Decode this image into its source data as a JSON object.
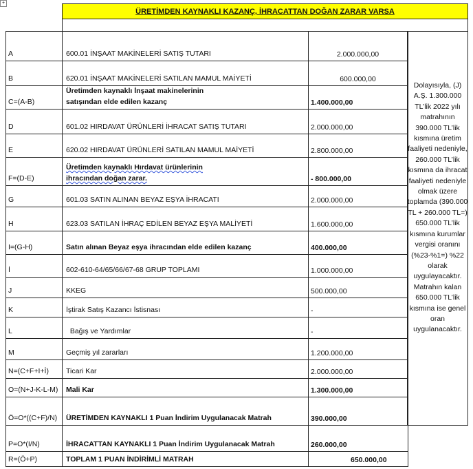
{
  "header": {
    "title": "ÜRETİMDEN KAYNAKLI KAZANÇ, İHRACATTAN DOĞAN ZARAR VARSA"
  },
  "rows": [
    {
      "code": "A",
      "desc": [
        "600.01 İNŞAAT MAKİNELERİ SATIŞ TUTARI"
      ],
      "value": "2.000.000,00",
      "bold": false
    },
    {
      "code": "B",
      "desc": [
        "620.01 İNŞAAT MAKİNELERİ SATILAN MAMUL MAİYETİ"
      ],
      "value": "600.000,00",
      "bold": false
    },
    {
      "code": "C=(A-B)",
      "desc": [
        "Üretimden kaynaklı İnşaat makinelerinin",
        "satışından elde edilen kazanç"
      ],
      "value": "1.400.000,00",
      "bold": true
    },
    {
      "code": "D",
      "desc": [
        "601.02 HIRDAVAT ÜRÜNLERİ İHRACAT SATIŞ TUTARI"
      ],
      "value": "2.000.000,00",
      "bold": false
    },
    {
      "code": "E",
      "desc": [
        "620.02 HIRDAVAT ÜRÜNLERİ SATILAN MAMUL MAİYETİ"
      ],
      "value": "2.800.000,00",
      "bold": false
    },
    {
      "code": "F=(D-E)",
      "desc": [
        "Üretimden kaynaklı Hırdavat ürünlerinin",
        "ihracından doğan zarar."
      ],
      "value": "- 800.000,00",
      "bold": true
    },
    {
      "code": "G",
      "desc": [
        "601.03 SATIN ALINAN BEYAZ EŞYA İHRACATI"
      ],
      "value": "2.000.000,00",
      "bold": false
    },
    {
      "code": "H",
      "desc": [
        "623.03 SATILAN İHRAÇ EDİLEN BEYAZ EŞYA MALİYETİ"
      ],
      "value": "1.600.000,00",
      "bold": false
    },
    {
      "code": "I=(G-H)",
      "desc": [
        "Satın alınan Beyaz eşya ihracından elde edilen kazanç"
      ],
      "value": "400.000,00",
      "bold": true
    },
    {
      "code": "İ",
      "desc": [
        "602-610-64/65/66/67-68 GRUP TOPLAMI"
      ],
      "value": "1.000.000,00",
      "bold": false
    },
    {
      "code": "J",
      "desc": [
        "KKEG"
      ],
      "value": "500.000,00",
      "bold": false
    },
    {
      "code": "K",
      "desc": [
        "İştirak Satış Kazancı İstisnası"
      ],
      "value": "-",
      "bold": false
    },
    {
      "code": "L",
      "desc": [
        "  Bağış ve Yardımlar"
      ],
      "value": "-",
      "bold": false
    },
    {
      "code": "M",
      "desc": [
        "Geçmiş yıl zararları"
      ],
      "value": "1.200.000,00",
      "bold": false
    },
    {
      "code": "N=(C+F+I+İ)",
      "desc": [
        "Ticari Kar"
      ],
      "value": "2.000.000,00",
      "bold": false
    },
    {
      "code": "O=(N+J-K-L-M)",
      "desc": [
        "Mali Kar"
      ],
      "value": "1.300.000,00",
      "bold": true
    },
    {
      "code": "Ö=O*((C+F)/N)",
      "desc": [
        "ÜRETİMDEN KAYNAKLI 1 Puan İndirim Uygulanacak Matrah"
      ],
      "value": "390.000,00",
      "bold": true
    },
    {
      "code": "P=O*(I/N)",
      "desc": [
        "İHRACATTAN KAYNAKLI 1 Puan İndirim Uygulanacak Matrah"
      ],
      "value": "260.000,00",
      "bold": true
    },
    {
      "code": "R=(Ö+P)",
      "desc": [
        "TOPLAM 1 PUAN İNDİRİMLİ MATRAH"
      ],
      "value": "650.000,00",
      "bold": true
    }
  ],
  "notes": "Dolayısıyla, (J) A.Ş. 1.300.000 TL’lik 2022 yılı matrahının 390.000 TL’lik kısmına üretim faaliyeti nedeniyle, 260.000 TL’lik kısmına da ihracat faaliyeti nedeniyle olmak üzere toplamda (390.000 TL + 260.000 TL=) 650.000 TL’lik kısmına kurumlar vergisi oranını (%23-%1=) %22 olarak uygulayacaktır. Matrahın kalan 650.000 TL’lik kısmına ise genel oran uygulanacaktır.",
  "colors": {
    "header_bg": "#ffff00",
    "border": "#222222"
  }
}
